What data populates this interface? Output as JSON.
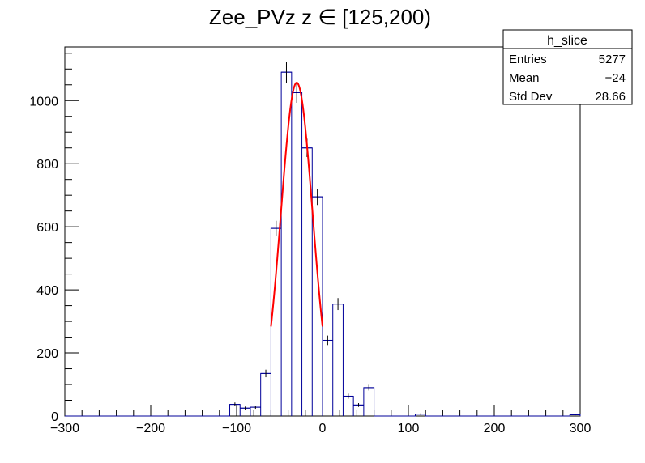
{
  "chart_data": {
    "type": "bar",
    "title": "Zee_PVz z  ∈ [125,200)",
    "xlabel": "",
    "ylabel": "",
    "xlim": [
      -300,
      300
    ],
    "ylim": [
      0,
      1170
    ],
    "xticks": [
      -300,
      -200,
      -100,
      0,
      100,
      200,
      300
    ],
    "yticks": [
      0,
      200,
      400,
      600,
      800,
      1000
    ],
    "bin_width": 12,
    "bin_lows": [
      -108,
      -96,
      -84,
      -72,
      -60,
      -48,
      -36,
      -24,
      -12,
      0,
      12,
      24,
      36,
      48,
      108,
      288
    ],
    "values": [
      37,
      25,
      28,
      135,
      595,
      1090,
      1025,
      850,
      695,
      240,
      355,
      63,
      35,
      90,
      6,
      4
    ],
    "errors": [
      6,
      5,
      5,
      12,
      24,
      33,
      32,
      29,
      26,
      15,
      19,
      8,
      6,
      9,
      2,
      2
    ],
    "fit": {
      "name": "gaus",
      "color": "#ff0000",
      "amplitude": 1057,
      "mean": -30,
      "sigma": 18.5,
      "x_range": [
        -60,
        0
      ]
    },
    "hist_color": "#000099",
    "legend_placement": "top-right",
    "stats": {
      "name": "h_slice",
      "rows": [
        {
          "label": "Entries",
          "value": "5277"
        },
        {
          "label": "Mean",
          "value": "−24"
        },
        {
          "label": "Std Dev",
          "value": "28.66"
        }
      ]
    }
  }
}
